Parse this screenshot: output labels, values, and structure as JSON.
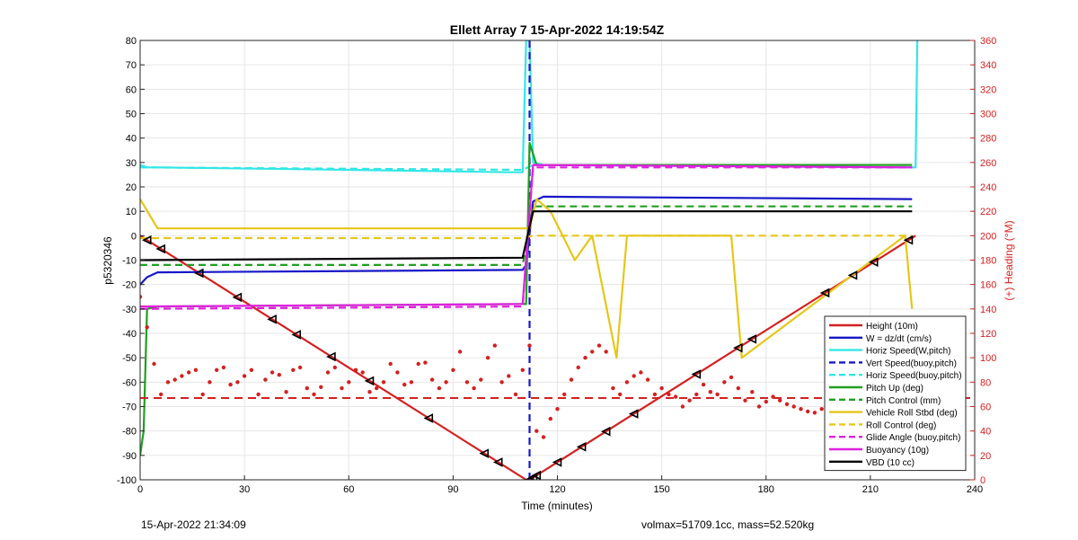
{
  "chart_data": {
    "type": "line",
    "title": "Ellett Array 7 15-Apr-2022 14:19:54Z",
    "xlabel": "Time (minutes)",
    "ylabel": "p5320346",
    "ylabel_right": "(+) Heading (°M)",
    "xlim": [
      0,
      240
    ],
    "ylim": [
      -100,
      80
    ],
    "ylim_right": [
      0,
      360
    ],
    "xticks": [
      "0",
      "30",
      "60",
      "90",
      "120",
      "150",
      "180",
      "210",
      "240"
    ],
    "yticks": [
      "-100",
      "-90",
      "-80",
      "-70",
      "-60",
      "-50",
      "-40",
      "-30",
      "-20",
      "-10",
      "0",
      "10",
      "20",
      "30",
      "40",
      "50",
      "60",
      "70",
      "80"
    ],
    "yticks_right": [
      "0",
      "20",
      "40",
      "60",
      "80",
      "100",
      "120",
      "140",
      "160",
      "180",
      "200",
      "220",
      "240",
      "260",
      "280",
      "300",
      "320",
      "340",
      "360"
    ],
    "grid": true,
    "legend_position": "bottom-right",
    "colors": {
      "height": "#e41a1c",
      "w": "#1818c8",
      "horiz": "#33e6e6",
      "vert": "#1818c8",
      "pitch": "#20a020",
      "roll": "#e6c619",
      "buoyancy": "#e020e0",
      "vbd": "#000000",
      "heading": "#e41a1c",
      "right_axis": "#d42020"
    },
    "series": [
      {
        "name": "Height (10m)",
        "style": "solid",
        "color": "#d42020",
        "x": [
          0,
          111,
          112,
          223
        ],
        "y": [
          0,
          -100,
          -100,
          0
        ]
      },
      {
        "name": "W = dz/dt (cm/s)",
        "style": "solid",
        "color": "#1818c8",
        "x": [
          0,
          2,
          5,
          110,
          111,
          113,
          116,
          222
        ],
        "y": [
          -20,
          -17,
          -15,
          -14,
          -12,
          14,
          16,
          15
        ]
      },
      {
        "name": "Horiz Speed(W,pitch)",
        "style": "solid",
        "color": "#33e6e6",
        "x": [
          0,
          2,
          5,
          60,
          106,
          110,
          111,
          112,
          113,
          116,
          222,
          223,
          223.5
        ],
        "y": [
          29,
          28,
          28,
          27,
          26,
          26,
          80,
          80,
          30,
          29,
          28,
          28,
          80
        ]
      },
      {
        "name": "Vert Speed(buoy,pitch)",
        "style": "dashed",
        "color": "#1818c8",
        "x": [
          112,
          112
        ],
        "y": [
          -100,
          80
        ]
      },
      {
        "name": "Horiz Speed(buoy,pitch)",
        "style": "dashed",
        "color": "#33e6e6",
        "x": [
          0,
          110,
          113,
          222
        ],
        "y": [
          28,
          27,
          29,
          28
        ]
      },
      {
        "name": "Pitch Up (deg)",
        "style": "solid",
        "color": "#20a020",
        "x": [
          0,
          1,
          2,
          5,
          110,
          111,
          112,
          114,
          222
        ],
        "y": [
          -90,
          -80,
          -30,
          -29,
          -28,
          -28,
          38,
          29,
          29
        ]
      },
      {
        "name": "Pitch Control (mm)",
        "style": "dashed",
        "color": "#20a020",
        "x": [
          0,
          110,
          113,
          222
        ],
        "y": [
          -12,
          -12,
          12,
          12
        ]
      },
      {
        "name": "Vehicle Roll Stbd (deg)",
        "style": "solid",
        "color": "#e6c619",
        "x": [
          0,
          5,
          50,
          110,
          112,
          114,
          118,
          125,
          130,
          137,
          140,
          170,
          173,
          220,
          222
        ],
        "y": [
          15,
          3,
          3,
          3,
          3,
          15,
          10,
          -10,
          0,
          -50,
          0,
          0,
          -50,
          0,
          -30
        ]
      },
      {
        "name": "Roll Control (deg)",
        "style": "dashed",
        "color": "#e6c619",
        "x": [
          0,
          110,
          113,
          222
        ],
        "y": [
          -1,
          -1,
          0,
          0
        ]
      },
      {
        "name": "Glide Angle (buoy,pitch)",
        "style": "dashed",
        "color": "#e020e0",
        "x": [
          0,
          110,
          113,
          222
        ],
        "y": [
          -30,
          -29,
          28,
          28
        ]
      },
      {
        "name": "Buoyancy (10g)",
        "style": "solid",
        "color": "#e020e0",
        "x": [
          0,
          110,
          113,
          222
        ],
        "y": [
          -29,
          -28,
          29,
          28
        ]
      },
      {
        "name": "VBD (10 cc)",
        "style": "solid",
        "color": "#000000",
        "x": [
          0,
          110,
          113,
          222
        ],
        "y": [
          -10,
          -9,
          10,
          10
        ]
      }
    ],
    "heading_reference_deg": 67,
    "heading_points": {
      "axis": "right",
      "color": "#d42020",
      "x": [
        0,
        2,
        4,
        6,
        8,
        10,
        12,
        14,
        16,
        18,
        20,
        22,
        24,
        26,
        28,
        30,
        32,
        34,
        36,
        38,
        40,
        42,
        44,
        46,
        48,
        50,
        52,
        54,
        56,
        58,
        60,
        62,
        64,
        66,
        68,
        70,
        72,
        74,
        76,
        78,
        80,
        82,
        84,
        86,
        88,
        90,
        92,
        94,
        96,
        98,
        100,
        102,
        104,
        106,
        108,
        110,
        112,
        114,
        116,
        118,
        120,
        122,
        124,
        126,
        128,
        130,
        132,
        134,
        136,
        138,
        140,
        142,
        144,
        146,
        148,
        150,
        152,
        154,
        156,
        158,
        160,
        162,
        164,
        166,
        168,
        170,
        172,
        174,
        176,
        178,
        180,
        182,
        184,
        186,
        188,
        190,
        192,
        194,
        196,
        198,
        200,
        202,
        204,
        206,
        208,
        210,
        212,
        214,
        216,
        218,
        220,
        222
      ],
      "y": [
        150,
        125,
        95,
        70,
        80,
        82,
        85,
        88,
        90,
        70,
        80,
        90,
        92,
        78,
        80,
        85,
        90,
        70,
        82,
        88,
        86,
        72,
        90,
        92,
        75,
        70,
        76,
        88,
        92,
        75,
        80,
        90,
        88,
        72,
        75,
        80,
        95,
        88,
        78,
        80,
        95,
        96,
        82,
        75,
        80,
        90,
        105,
        80,
        75,
        82,
        100,
        110,
        80,
        85,
        70,
        90,
        110,
        40,
        35,
        50,
        58,
        70,
        82,
        92,
        100,
        105,
        110,
        105,
        75,
        70,
        80,
        85,
        88,
        82,
        70,
        75,
        70,
        68,
        60,
        65,
        70,
        78,
        72,
        70,
        80,
        84,
        75,
        65,
        72,
        60,
        64,
        68,
        65,
        62,
        60,
        58,
        56,
        55,
        58,
        60,
        66,
        62,
        70,
        60,
        55,
        58,
        60,
        56,
        54,
        60,
        65,
        68
      ]
    },
    "markers": {
      "color": "#000000",
      "x": [
        2,
        6,
        17,
        28,
        38,
        45,
        55,
        66,
        83,
        99,
        103,
        112,
        113,
        114,
        120,
        127,
        134,
        142,
        160,
        172,
        176,
        197,
        205,
        211,
        221
      ]
    }
  },
  "footer": {
    "left": "15-Apr-2022 21:34:09",
    "right": "volmax=51709.1cc, mass=52.520kg"
  }
}
